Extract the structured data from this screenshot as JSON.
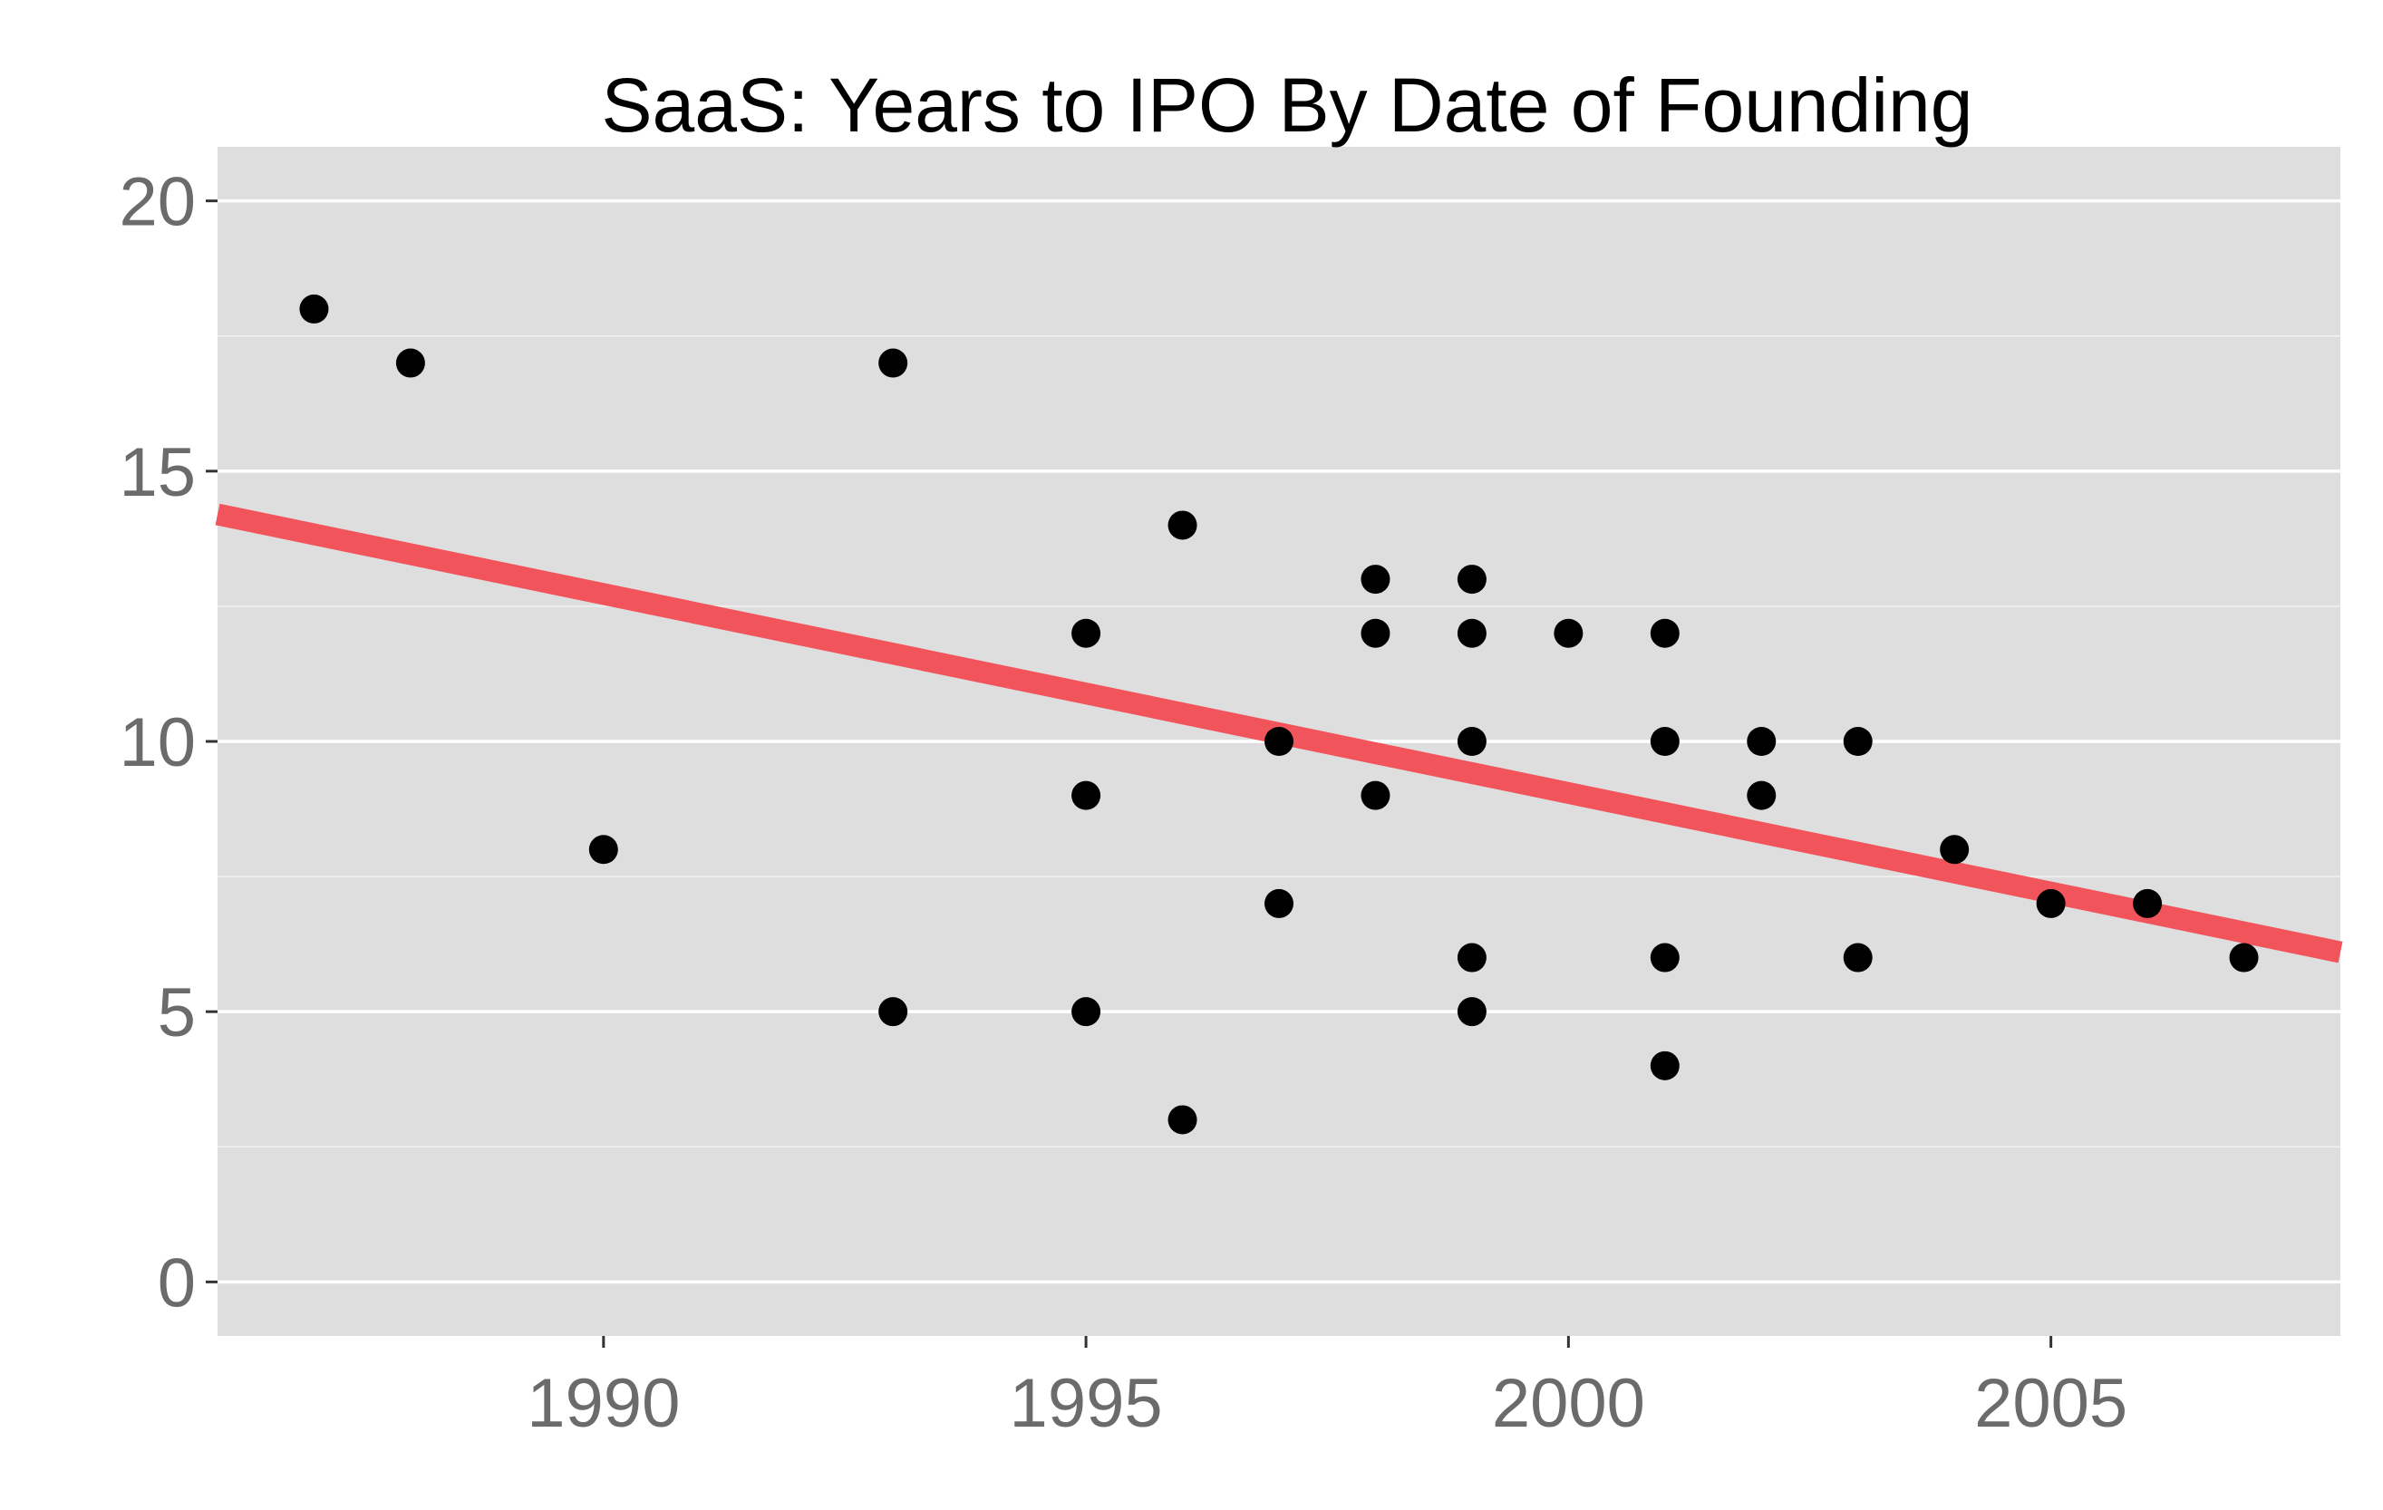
{
  "chart_data": {
    "type": "scatter",
    "title": "SaaS: Years to IPO By Date of Founding",
    "xlabel": "",
    "ylabel": "",
    "xlim": [
      1986,
      2008
    ],
    "ylim": [
      -1,
      21
    ],
    "x_ticks": [
      1990,
      1995,
      2000,
      2005
    ],
    "y_ticks": [
      0,
      5,
      10,
      15,
      20
    ],
    "x_tick_labels": [
      "1990",
      "1995",
      "2000",
      "2005"
    ],
    "y_tick_labels": [
      "0",
      "5",
      "10",
      "15",
      "20"
    ],
    "grid": true,
    "legend": "none",
    "colors": {
      "panel_background": "#dedede",
      "gridline": "#ffffff",
      "point": "#000000",
      "trend_line": "#f2545b"
    },
    "series": [
      {
        "points": [
          {
            "x": 1987,
            "y": 18
          },
          {
            "x": 1988,
            "y": 17
          },
          {
            "x": 1990,
            "y": 8
          },
          {
            "x": 1993,
            "y": 17
          },
          {
            "x": 1993,
            "y": 5
          },
          {
            "x": 1995,
            "y": 12
          },
          {
            "x": 1995,
            "y": 9
          },
          {
            "x": 1995,
            "y": 5
          },
          {
            "x": 1996,
            "y": 14
          },
          {
            "x": 1996,
            "y": 3
          },
          {
            "x": 1997,
            "y": 10
          },
          {
            "x": 1997,
            "y": 7
          },
          {
            "x": 1998,
            "y": 13
          },
          {
            "x": 1998,
            "y": 12
          },
          {
            "x": 1998,
            "y": 9
          },
          {
            "x": 1999,
            "y": 13
          },
          {
            "x": 1999,
            "y": 12
          },
          {
            "x": 1999,
            "y": 10
          },
          {
            "x": 1999,
            "y": 6
          },
          {
            "x": 1999,
            "y": 5
          },
          {
            "x": 2000,
            "y": 12
          },
          {
            "x": 2001,
            "y": 12
          },
          {
            "x": 2001,
            "y": 10
          },
          {
            "x": 2001,
            "y": 6
          },
          {
            "x": 2001,
            "y": 4
          },
          {
            "x": 2002,
            "y": 10
          },
          {
            "x": 2002,
            "y": 9
          },
          {
            "x": 2003,
            "y": 10
          },
          {
            "x": 2003,
            "y": 6
          },
          {
            "x": 2004,
            "y": 8
          },
          {
            "x": 2005,
            "y": 7
          },
          {
            "x": 2006,
            "y": 7
          },
          {
            "x": 2007,
            "y": 6
          }
        ]
      }
    ],
    "trend_line": {
      "type": "linear",
      "x": [
        1986,
        2008
      ],
      "y": [
        14.2,
        6.1
      ]
    }
  }
}
